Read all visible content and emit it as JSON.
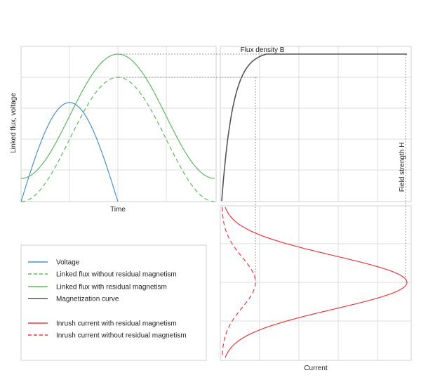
{
  "labels": {
    "time": "Time",
    "linked_flux_voltage": "Linked flux, voltage",
    "flux_density": "Flux density B",
    "field_strength": "Field strength H",
    "current": "Current"
  },
  "legend": {
    "items": [
      {
        "label": "Voltage",
        "color": "#4a90c8",
        "dash": "solid"
      },
      {
        "label": "Linked flux without residual magnetism",
        "color": "#5cb85c",
        "dash": "dashed"
      },
      {
        "label": "Linked flux with residual magnetism",
        "color": "#5cb85c",
        "dash": "solid"
      },
      {
        "label": "Magnetization curve",
        "color": "#555555",
        "dash": "solid"
      },
      {
        "label": "Inrush current with residual magnetism",
        "color": "#e8383d",
        "dash": "solid"
      },
      {
        "label": "Inrush current without residual magnetism",
        "color": "#e8383d",
        "dash": "dashed"
      }
    ]
  },
  "colors": {
    "voltage": "#4a90c8",
    "flux": "#5cb85c",
    "magnetization": "#555555",
    "inrush": "#e8383d",
    "grid": "#dcdcdc",
    "frame": "#cfcfcf",
    "guide": "#9a9a9a"
  }
}
